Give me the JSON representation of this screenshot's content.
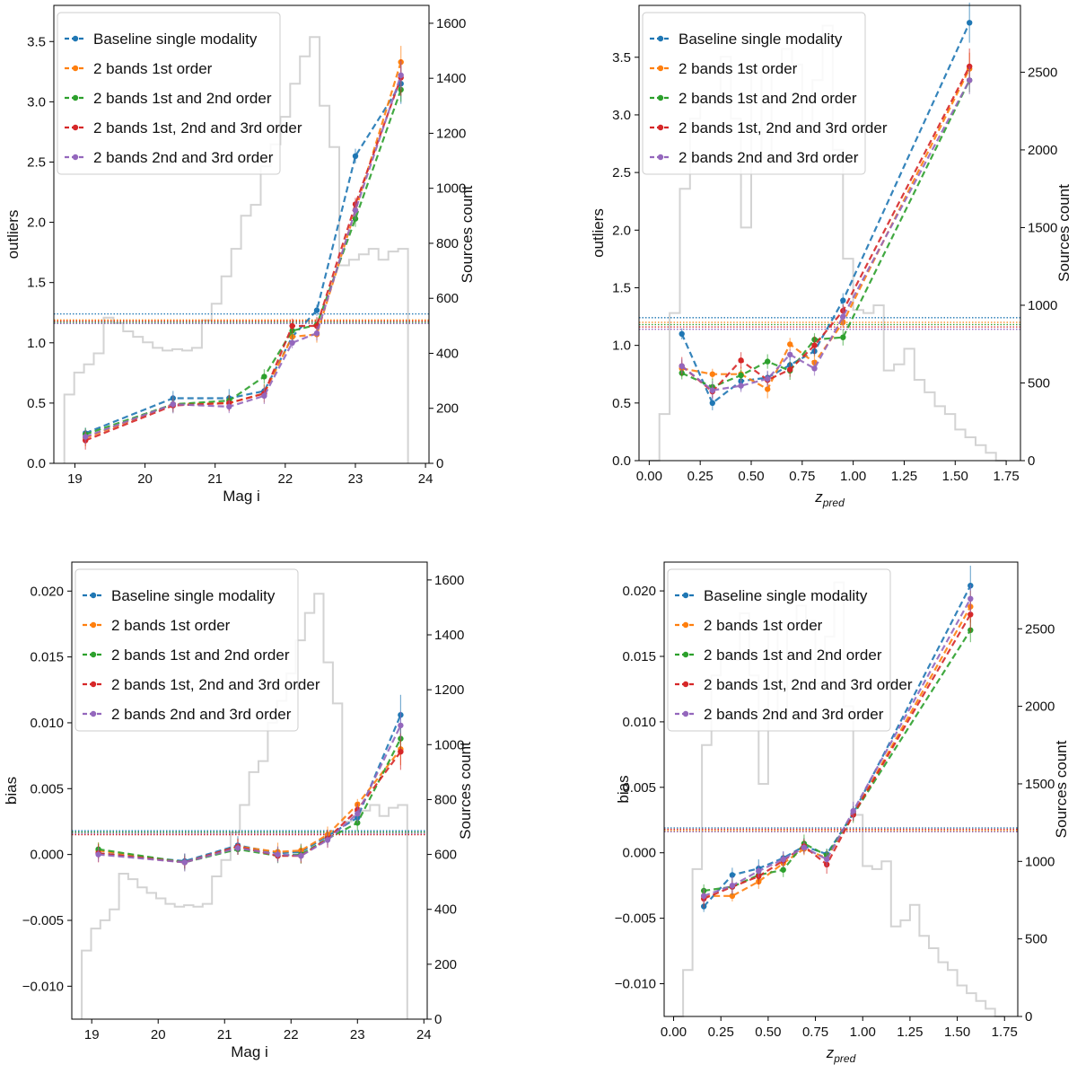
{
  "series_styles": [
    {
      "name": "Baseline single modality",
      "color": "#1f77b4"
    },
    {
      "name": "2 bands 1st order",
      "color": "#ff7f0e"
    },
    {
      "name": "2 bands 1st and 2nd order",
      "color": "#2ca02c"
    },
    {
      "name": "2 bands 1st, 2nd and 3rd order",
      "color": "#d62728"
    },
    {
      "name": "2 bands 2nd and 3rd order",
      "color": "#9467bd"
    }
  ],
  "chart_data": [
    {
      "id": "outliers-mag",
      "type": "line",
      "xlabel": "Mag i",
      "ylabel": "outliers",
      "y2label": "Sources count",
      "xlim": [
        18.7,
        24.05
      ],
      "ylim": [
        0.0,
        3.8
      ],
      "y2lim": [
        0,
        1665
      ],
      "xticks": [
        "19",
        "20",
        "21",
        "22",
        "23",
        "24"
      ],
      "xtick_values": [
        19,
        20,
        21,
        22,
        23,
        24
      ],
      "yticks": [
        "0.0",
        "0.5",
        "1.0",
        "1.5",
        "2.0",
        "2.5",
        "3.0",
        "3.5"
      ],
      "ytick_values": [
        0,
        0.5,
        1.0,
        1.5,
        2.0,
        2.5,
        3.0,
        3.5
      ],
      "y2ticks": [
        "0",
        "200",
        "400",
        "600",
        "800",
        "1000",
        "1200",
        "1400",
        "1600"
      ],
      "y2tick_values": [
        0,
        200,
        400,
        600,
        800,
        1000,
        1200,
        1400,
        1600
      ],
      "legend": [
        "Baseline single modality",
        "2 bands 1st order",
        "2 bands 1st and 2nd order",
        "2 bands 1st, 2nd and 3rd order",
        "2 bands 2nd and 3rd order"
      ],
      "x": [
        19.15,
        20.4,
        21.2,
        21.7,
        22.1,
        22.45,
        23.0,
        23.65
      ],
      "series": [
        {
          "name": "Baseline single modality",
          "values": [
            0.25,
            0.54,
            0.54,
            0.6,
            1.05,
            1.27,
            2.55,
            3.15
          ]
        },
        {
          "name": "2 bands 1st order",
          "values": [
            0.21,
            0.49,
            0.5,
            0.58,
            1.05,
            1.07,
            2.1,
            3.33
          ]
        },
        {
          "name": "2 bands 1st and 2nd order",
          "values": [
            0.24,
            0.49,
            0.52,
            0.72,
            1.1,
            1.15,
            2.03,
            3.1
          ]
        },
        {
          "name": "2 bands 1st, 2nd and 3rd order",
          "values": [
            0.19,
            0.48,
            0.5,
            0.58,
            1.14,
            1.14,
            2.15,
            3.2
          ]
        },
        {
          "name": "2 bands 2nd and 3rd order",
          "values": [
            0.22,
            0.49,
            0.47,
            0.56,
            1.0,
            1.08,
            2.1,
            3.22
          ]
        }
      ],
      "baselines": [
        1.24,
        1.19,
        1.17,
        1.18,
        1.16
      ],
      "hist": {
        "edges": [
          18.85,
          18.99,
          19.13,
          19.27,
          19.41,
          19.55,
          19.69,
          19.83,
          19.97,
          20.11,
          20.25,
          20.39,
          20.53,
          20.67,
          20.81,
          20.95,
          21.09,
          21.23,
          21.37,
          21.51,
          21.65,
          21.79,
          21.93,
          22.07,
          22.21,
          22.35,
          22.49,
          22.63,
          22.77,
          22.91,
          23.05,
          23.19,
          23.33,
          23.47,
          23.61,
          23.75
        ],
        "counts": [
          250,
          330,
          360,
          400,
          530,
          510,
          480,
          460,
          440,
          420,
          410,
          415,
          410,
          420,
          520,
          580,
          680,
          780,
          900,
          940,
          1080,
          1160,
          1260,
          1380,
          1480,
          1550,
          1300,
          1150,
          720,
          740,
          760,
          780,
          740,
          770,
          780
        ]
      }
    },
    {
      "id": "outliers-z",
      "type": "line",
      "xlabel": "z_pred",
      "ylabel": "outliers",
      "y2label": "Sources count",
      "xlim": [
        -0.05,
        1.82
      ],
      "ylim": [
        0.0,
        3.95
      ],
      "y2lim": [
        0,
        2930
      ],
      "xticks": [
        "0.00",
        "0.25",
        "0.50",
        "0.75",
        "1.00",
        "1.25",
        "1.50",
        "1.75"
      ],
      "xtick_values": [
        0,
        0.25,
        0.5,
        0.75,
        1.0,
        1.25,
        1.5,
        1.75
      ],
      "yticks": [
        "0.0",
        "0.5",
        "1.0",
        "1.5",
        "2.0",
        "2.5",
        "3.0",
        "3.5"
      ],
      "ytick_values": [
        0,
        0.5,
        1.0,
        1.5,
        2.0,
        2.5,
        3.0,
        3.5
      ],
      "y2ticks": [
        "0",
        "500",
        "1000",
        "1500",
        "2000",
        "2500"
      ],
      "y2tick_values": [
        0,
        500,
        1000,
        1500,
        2000,
        2500
      ],
      "legend": [
        "Baseline single modality",
        "2 bands 1st order",
        "2 bands 1st and 2nd order",
        "2 bands 1st, 2nd and 3rd order",
        "2 bands 2nd and 3rd order"
      ],
      "x": [
        0.16,
        0.31,
        0.45,
        0.58,
        0.69,
        0.81,
        0.95,
        1.57
      ],
      "series": [
        {
          "name": "Baseline single modality",
          "values": [
            1.1,
            0.5,
            0.69,
            0.72,
            0.83,
            0.95,
            1.39,
            3.8
          ]
        },
        {
          "name": "2 bands 1st order",
          "values": [
            0.8,
            0.75,
            0.75,
            0.62,
            1.01,
            0.85,
            1.2,
            3.4
          ]
        },
        {
          "name": "2 bands 1st and 2nd order",
          "values": [
            0.76,
            0.64,
            0.74,
            0.86,
            0.78,
            1.05,
            1.07,
            3.3
          ]
        },
        {
          "name": "2 bands 1st, 2nd and 3rd order",
          "values": [
            0.82,
            0.6,
            0.87,
            0.7,
            0.79,
            1.0,
            1.3,
            3.42
          ]
        },
        {
          "name": "2 bands 2nd and 3rd order",
          "values": [
            0.82,
            0.61,
            0.65,
            0.71,
            0.92,
            0.8,
            1.25,
            3.3
          ]
        }
      ],
      "baselines": [
        1.24,
        1.2,
        1.18,
        1.16,
        1.14
      ],
      "hist": {
        "edges": [
          0.0,
          0.05,
          0.1,
          0.15,
          0.2,
          0.25,
          0.3,
          0.35,
          0.4,
          0.45,
          0.5,
          0.55,
          0.6,
          0.65,
          0.7,
          0.75,
          0.8,
          0.85,
          0.9,
          0.95,
          1.0,
          1.05,
          1.1,
          1.15,
          1.2,
          1.25,
          1.3,
          1.35,
          1.4,
          1.45,
          1.5,
          1.55,
          1.6,
          1.65,
          1.7,
          1.75
        ],
        "counts": [
          0,
          300,
          950,
          1750,
          2200,
          2350,
          2300,
          2600,
          2200,
          1500,
          2500,
          1950,
          2500,
          2650,
          2550,
          2150,
          2450,
          2800,
          2000,
          1300,
          970,
          950,
          1000,
          580,
          620,
          720,
          520,
          440,
          350,
          300,
          200,
          150,
          100,
          50,
          0
        ]
      }
    },
    {
      "id": "bias-mag",
      "type": "line",
      "xlabel": "Mag i",
      "ylabel": "bias",
      "y2label": "Sources count",
      "xlim": [
        18.7,
        24.05
      ],
      "ylim": [
        -0.0125,
        0.0222
      ],
      "y2lim": [
        0,
        1665
      ],
      "xticks": [
        "19",
        "20",
        "21",
        "22",
        "23",
        "24"
      ],
      "xtick_values": [
        19,
        20,
        21,
        22,
        23,
        24
      ],
      "yticks": [
        "−0.010",
        "−0.005",
        "0.000",
        "0.005",
        "0.010",
        "0.015",
        "0.020"
      ],
      "ytick_values": [
        -0.01,
        -0.005,
        0.0,
        0.005,
        0.01,
        0.015,
        0.02
      ],
      "y2ticks": [
        "0",
        "200",
        "400",
        "600",
        "800",
        "1000",
        "1200",
        "1400",
        "1600"
      ],
      "y2tick_values": [
        0,
        200,
        400,
        600,
        800,
        1000,
        1200,
        1400,
        1600
      ],
      "legend": [
        "Baseline single modality",
        "2 bands 1st order",
        "2 bands 1st and 2nd order",
        "2 bands 1st, 2nd and 3rd order",
        "2 bands 2nd and 3rd order"
      ],
      "x": [
        19.1,
        20.4,
        21.2,
        21.8,
        22.15,
        22.55,
        23.0,
        23.65
      ],
      "series": [
        {
          "name": "Baseline single modality",
          "values": [
            0.0001,
            -0.0005,
            0.0007,
            0.0001,
            0.0002,
            0.0014,
            0.0028,
            0.0106
          ]
        },
        {
          "name": "2 bands 1st order",
          "values": [
            0.0003,
            -0.0006,
            0.0006,
            0.0002,
            0.0003,
            0.0015,
            0.0038,
            0.008
          ]
        },
        {
          "name": "2 bands 1st and 2nd order",
          "values": [
            0.0004,
            -0.0006,
            0.0004,
            -0.0001,
            0.0,
            0.0012,
            0.0024,
            0.0088
          ]
        },
        {
          "name": "2 bands 1st, 2nd and 3rd order",
          "values": [
            0.0001,
            -0.0006,
            0.0006,
            -0.0001,
            -0.0001,
            0.0012,
            0.0034,
            0.0078
          ]
        },
        {
          "name": "2 bands 2nd and 3rd order",
          "values": [
            0.0,
            -0.0006,
            0.0005,
            0.0,
            -0.0001,
            0.0011,
            0.0031,
            0.0098
          ]
        }
      ],
      "baselines": [
        0.0018,
        0.0016,
        0.0017,
        0.0015,
        0.0016
      ],
      "hist": {
        "edges": [
          18.85,
          18.99,
          19.13,
          19.27,
          19.41,
          19.55,
          19.69,
          19.83,
          19.97,
          20.11,
          20.25,
          20.39,
          20.53,
          20.67,
          20.81,
          20.95,
          21.09,
          21.23,
          21.37,
          21.51,
          21.65,
          21.79,
          21.93,
          22.07,
          22.21,
          22.35,
          22.49,
          22.63,
          22.77,
          22.91,
          23.05,
          23.19,
          23.33,
          23.47,
          23.61,
          23.75
        ],
        "counts": [
          250,
          330,
          360,
          400,
          530,
          510,
          480,
          460,
          440,
          420,
          410,
          415,
          410,
          420,
          520,
          580,
          680,
          780,
          900,
          940,
          1080,
          1160,
          1260,
          1380,
          1480,
          1550,
          1300,
          1150,
          720,
          740,
          760,
          780,
          740,
          770,
          780
        ]
      }
    },
    {
      "id": "bias-z",
      "type": "line",
      "xlabel": "z_pred",
      "ylabel": "bias",
      "y2label": "Sources count",
      "xlim": [
        -0.05,
        1.82
      ],
      "ylim": [
        -0.0125,
        0.0222
      ],
      "y2lim": [
        0,
        2930
      ],
      "xticks": [
        "0.00",
        "0.25",
        "0.50",
        "0.75",
        "1.00",
        "1.25",
        "1.50",
        "1.75"
      ],
      "xtick_values": [
        0,
        0.25,
        0.5,
        0.75,
        1.0,
        1.25,
        1.5,
        1.75
      ],
      "yticks": [
        "−0.010",
        "−0.005",
        "0.000",
        "0.005",
        "0.010",
        "0.015",
        "0.020"
      ],
      "ytick_values": [
        -0.01,
        -0.005,
        0.0,
        0.005,
        0.01,
        0.015,
        0.02
      ],
      "y2ticks": [
        "0",
        "500",
        "1000",
        "1500",
        "2000",
        "2500"
      ],
      "y2tick_values": [
        0,
        500,
        1000,
        1500,
        2000,
        2500
      ],
      "legend": [
        "Baseline single modality",
        "2 bands 1st order",
        "2 bands 1st and 2nd order",
        "2 bands 1st, 2nd and 3rd order",
        "2 bands 2nd and 3rd order"
      ],
      "x": [
        0.16,
        0.31,
        0.45,
        0.58,
        0.69,
        0.81,
        0.95,
        1.57
      ],
      "series": [
        {
          "name": "Baseline single modality",
          "values": [
            -0.0041,
            -0.0017,
            -0.0012,
            -0.0004,
            0.0005,
            -0.0001,
            0.003,
            0.0204
          ]
        },
        {
          "name": "2 bands 1st order",
          "values": [
            -0.0033,
            -0.0033,
            -0.0022,
            -0.0008,
            0.0003,
            -0.0004,
            0.0029,
            0.0188
          ]
        },
        {
          "name": "2 bands 1st and 2nd order",
          "values": [
            -0.0029,
            -0.0026,
            -0.0017,
            -0.0013,
            0.0007,
            -0.0002,
            0.0029,
            0.017
          ]
        },
        {
          "name": "2 bands 1st, 2nd and 3rd order",
          "values": [
            -0.0035,
            -0.0026,
            -0.0018,
            -0.0006,
            0.0005,
            -0.0009,
            0.0029,
            0.0182
          ]
        },
        {
          "name": "2 bands 2nd and 3rd order",
          "values": [
            -0.0033,
            -0.0025,
            -0.0014,
            -0.0005,
            0.0004,
            -0.0005,
            0.0032,
            0.0194
          ]
        }
      ],
      "baselines": [
        0.0019,
        0.0017,
        0.0016,
        0.0018,
        0.0016
      ],
      "hist": {
        "edges": [
          0.0,
          0.05,
          0.1,
          0.15,
          0.2,
          0.25,
          0.3,
          0.35,
          0.4,
          0.45,
          0.5,
          0.55,
          0.6,
          0.65,
          0.7,
          0.75,
          0.8,
          0.85,
          0.9,
          0.95,
          1.0,
          1.05,
          1.1,
          1.15,
          1.2,
          1.25,
          1.3,
          1.35,
          1.4,
          1.45,
          1.5,
          1.55,
          1.6,
          1.65,
          1.7,
          1.75
        ],
        "counts": [
          0,
          300,
          950,
          1750,
          2200,
          2350,
          2300,
          2600,
          2200,
          1500,
          2500,
          1950,
          2500,
          2650,
          2550,
          2150,
          2450,
          2800,
          2000,
          1300,
          970,
          950,
          1000,
          580,
          620,
          720,
          520,
          440,
          350,
          300,
          200,
          150,
          100,
          50,
          0
        ]
      }
    }
  ]
}
